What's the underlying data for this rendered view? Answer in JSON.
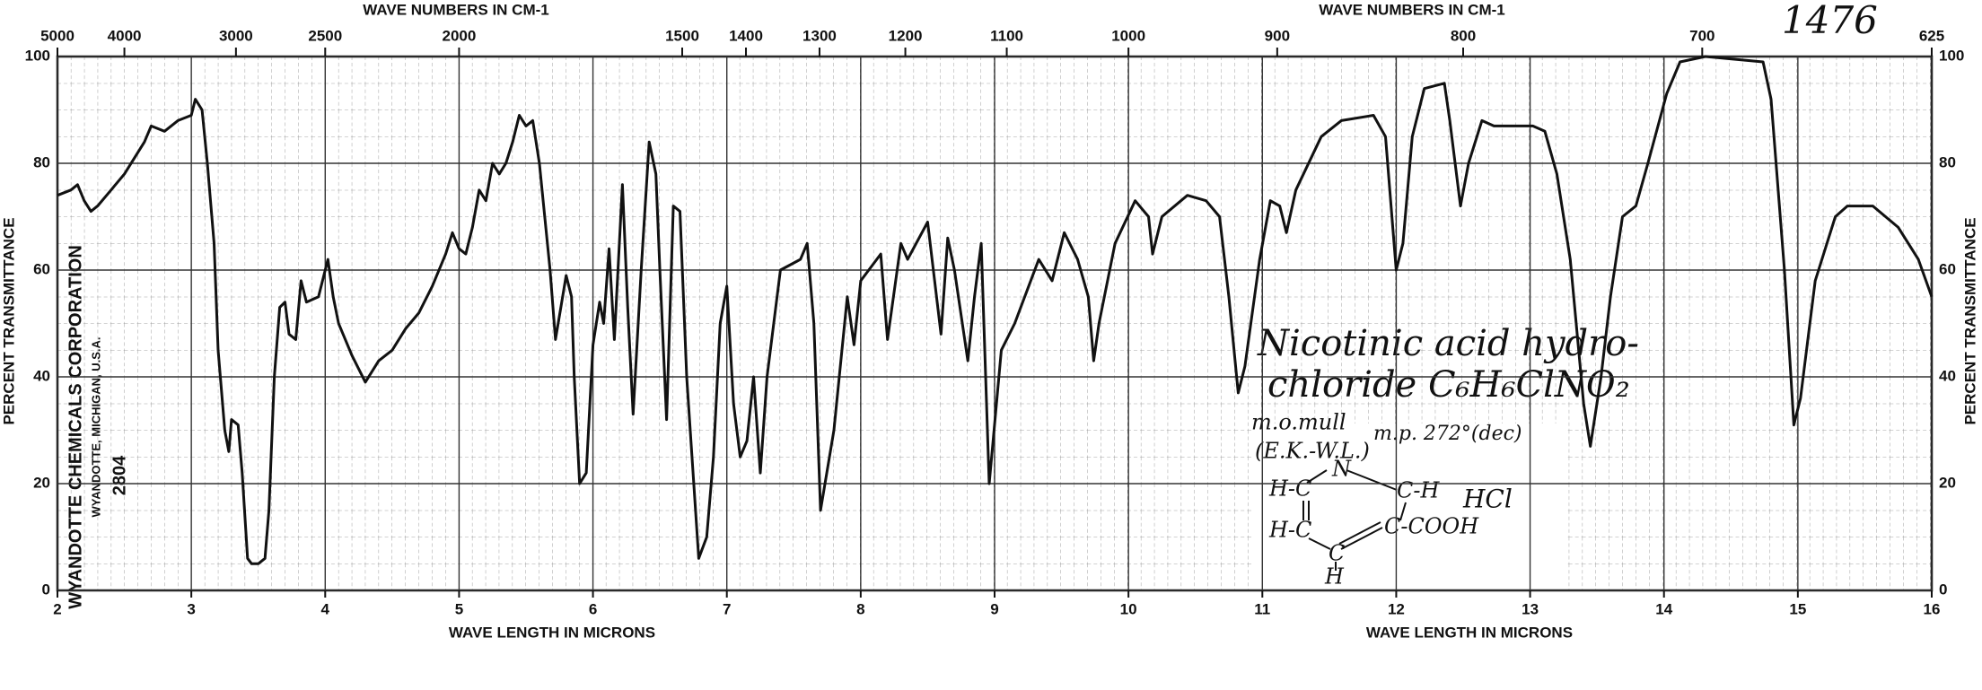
{
  "chart_data": {
    "type": "line",
    "x_label": "WAVE LENGTH IN MICRONS",
    "x2_label": "WAVE NUMBERS IN CM-1",
    "y_label": "PERCENT TRANSMITTANCE",
    "xlim": [
      2,
      16
    ],
    "xticks": [
      2,
      3,
      4,
      5,
      6,
      7,
      8,
      9,
      10,
      11,
      12,
      13,
      14,
      15,
      16
    ],
    "x2lim": [
      5000,
      625
    ],
    "x2ticks": [
      5000,
      4000,
      3000,
      2500,
      2000,
      1500,
      1400,
      1300,
      1200,
      1100,
      1000,
      900,
      800,
      700,
      625
    ],
    "ylim": [
      0,
      100
    ],
    "yticks": [
      0,
      20,
      40,
      60,
      80,
      100
    ],
    "grid": true,
    "annotations": [
      "1476",
      "Nicotinic acid hydro-",
      "chloride C₆H₆ClNO₂",
      "m.o.mull",
      "m.p. 272°(dec)",
      "(E.K.-W.L.)",
      "HCl",
      "WYANDOTTE CHEMICALS CORPORATION",
      "WYANDOTTE, MICHIGAN, U.S.A.",
      "2804"
    ],
    "structure_labels": [
      "H-C",
      "N",
      "C-H",
      "H-C",
      "C-COOH",
      "C",
      "H"
    ],
    "series": [
      {
        "name": "Nicotinic acid hydrochloride",
        "color": "#111111",
        "x": [
          2.0,
          2.1,
          2.15,
          2.2,
          2.25,
          2.3,
          2.4,
          2.5,
          2.6,
          2.65,
          2.7,
          2.8,
          2.9,
          3.0,
          3.03,
          3.08,
          3.12,
          3.17,
          3.2,
          3.25,
          3.28,
          3.3,
          3.35,
          3.38,
          3.42,
          3.45,
          3.5,
          3.55,
          3.58,
          3.62,
          3.66,
          3.7,
          3.73,
          3.78,
          3.82,
          3.86,
          3.95,
          4.02,
          4.06,
          4.1,
          4.2,
          4.3,
          4.4,
          4.5,
          4.6,
          4.7,
          4.8,
          4.9,
          4.95,
          5.0,
          5.05,
          5.1,
          5.15,
          5.2,
          5.25,
          5.3,
          5.35,
          5.4,
          5.45,
          5.5,
          5.55,
          5.6,
          5.68,
          5.72,
          5.76,
          5.8,
          5.84,
          5.86,
          5.9,
          5.95,
          6.0,
          6.05,
          6.08,
          6.12,
          6.16,
          6.22,
          6.26,
          6.3,
          6.36,
          6.42,
          6.47,
          6.5,
          6.55,
          6.6,
          6.65,
          6.7,
          6.79,
          6.85,
          6.9,
          6.95,
          7.0,
          7.05,
          7.1,
          7.15,
          7.2,
          7.25,
          7.3,
          7.4,
          7.55,
          7.6,
          7.65,
          7.7,
          7.8,
          7.9,
          7.95,
          8.0,
          8.15,
          8.2,
          8.3,
          8.35,
          8.5,
          8.6,
          8.65,
          8.7,
          8.8,
          8.85,
          8.9,
          8.96,
          9.05,
          9.15,
          9.33,
          9.43,
          9.52,
          9.62,
          9.7,
          9.74,
          9.78,
          9.9,
          10.05,
          10.15,
          10.18,
          10.25,
          10.44,
          10.58,
          10.68,
          10.75,
          10.82,
          10.87,
          10.98,
          11.06,
          11.13,
          11.18,
          11.25,
          11.44,
          11.59,
          11.83,
          11.92,
          12.0,
          12.05,
          12.12,
          12.21,
          12.36,
          12.4,
          12.48,
          12.54,
          12.64,
          12.73,
          13.02,
          13.11,
          13.2,
          13.3,
          13.4,
          13.45,
          13.53,
          13.6,
          13.69,
          13.79,
          13.88,
          14.02,
          14.12,
          14.31,
          14.74,
          14.8,
          14.9,
          14.97,
          15.02,
          15.13,
          15.28,
          15.37,
          15.56,
          15.75,
          15.9,
          16.0
        ],
        "values": [
          74,
          75,
          76,
          73,
          71,
          72,
          75,
          78,
          82,
          84,
          87,
          86,
          88,
          89,
          92,
          90,
          80,
          65,
          45,
          30,
          26,
          32,
          31,
          22,
          6,
          5,
          5,
          6,
          15,
          40,
          53,
          54,
          48,
          47,
          58,
          54,
          55,
          62,
          55,
          50,
          44,
          39,
          43,
          45,
          49,
          52,
          57,
          63,
          67,
          64,
          63,
          68,
          75,
          73,
          80,
          78,
          80,
          84,
          89,
          87,
          88,
          80,
          60,
          47,
          53,
          59,
          55,
          40,
          20,
          22,
          46,
          54,
          50,
          64,
          47,
          76,
          53,
          33,
          60,
          84,
          78,
          60,
          32,
          72,
          71,
          40,
          6,
          10,
          25,
          50,
          57,
          35,
          25,
          28,
          40,
          22,
          40,
          60,
          62,
          65,
          50,
          15,
          30,
          55,
          46,
          58,
          63,
          47,
          65,
          62,
          69,
          48,
          66,
          60,
          43,
          55,
          65,
          20,
          45,
          50,
          62,
          58,
          67,
          62,
          55,
          43,
          50,
          65,
          73,
          70,
          63,
          70,
          74,
          73,
          70,
          55,
          37,
          42,
          62,
          73,
          72,
          67,
          75,
          85,
          88,
          89,
          85,
          60,
          65,
          85,
          94,
          95,
          88,
          72,
          80,
          88,
          87,
          87,
          86,
          78,
          62,
          35,
          27,
          40,
          55,
          70,
          72,
          80,
          93,
          99,
          100,
          99,
          92,
          60,
          31,
          36,
          58,
          70,
          72,
          72,
          68,
          62,
          55
        ]
      }
    ]
  }
}
